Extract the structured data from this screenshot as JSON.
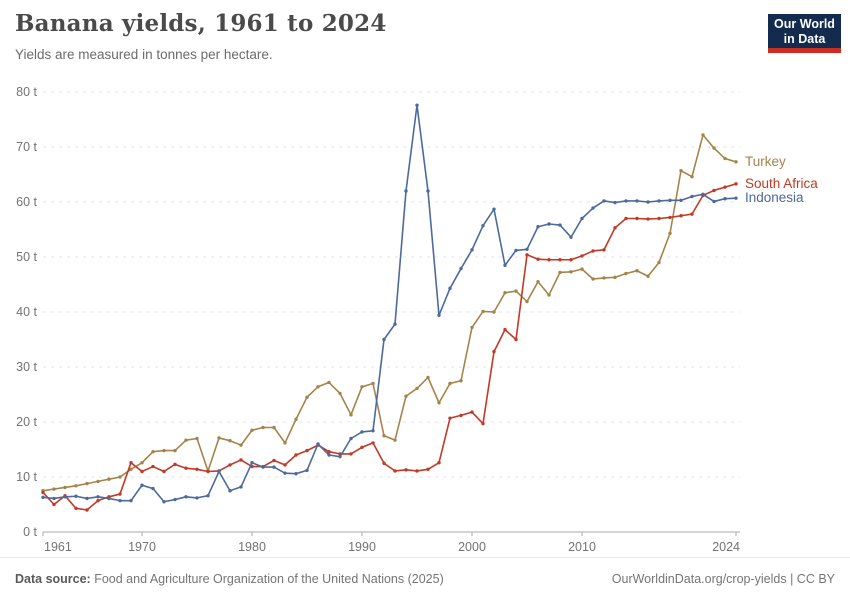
{
  "header": {
    "title": "Banana yields, 1961 to 2024",
    "subtitle": "Yields are measured in tonnes per hectare.",
    "logo": {
      "line1": "Our World",
      "line2": "in Data",
      "bg_color": "#122B4E",
      "stripe_color": "#CB2D21"
    }
  },
  "footer": {
    "source_label": "Data source:",
    "source_text": "Food and Agriculture Organization of the United Nations (2025)",
    "link_text": "OurWorldinData.org/crop-yields | CC BY"
  },
  "chart_data": {
    "type": "line",
    "title": "Banana yields, 1961 to 2024",
    "subtitle": "Yields are measured in tonnes per hectare.",
    "unit": "t",
    "ylim": [
      0,
      80
    ],
    "yticks": [
      0,
      10,
      20,
      30,
      40,
      50,
      60,
      70,
      80
    ],
    "xticks": [
      1961,
      1970,
      1980,
      1990,
      2000,
      2010,
      2024
    ],
    "grid": true,
    "legend_position": "right-end-labels",
    "x": [
      1961,
      1962,
      1963,
      1964,
      1965,
      1966,
      1967,
      1968,
      1969,
      1970,
      1971,
      1972,
      1973,
      1974,
      1975,
      1976,
      1977,
      1978,
      1979,
      1980,
      1981,
      1982,
      1983,
      1984,
      1985,
      1986,
      1987,
      1988,
      1989,
      1990,
      1991,
      1992,
      1993,
      1994,
      1995,
      1996,
      1997,
      1998,
      1999,
      2000,
      2001,
      2002,
      2003,
      2004,
      2005,
      2006,
      2007,
      2008,
      2009,
      2010,
      2011,
      2012,
      2013,
      2014,
      2015,
      2016,
      2017,
      2018,
      2019,
      2020,
      2021,
      2022,
      2023,
      2024
    ],
    "series": [
      {
        "name": "Turkey",
        "color": "#A5844B",
        "values": [
          7.5,
          7.8,
          8.1,
          8.4,
          8.8,
          9.2,
          9.6,
          10.0,
          11.4,
          12.6,
          14.6,
          14.8,
          14.8,
          16.7,
          17.0,
          11.1,
          17.1,
          16.6,
          15.8,
          18.5,
          19.0,
          19.0,
          16.2,
          20.5,
          24.5,
          26.4,
          27.2,
          25.2,
          21.3,
          26.4,
          27.0,
          17.5,
          16.7,
          24.7,
          26.1,
          28.1,
          23.5,
          27.0,
          27.5,
          37.2,
          40.1,
          40.0,
          43.5,
          43.8,
          41.9,
          45.5,
          43.1,
          47.2,
          47.3,
          47.8,
          46.0,
          46.2,
          46.3,
          47.0,
          47.5,
          46.5,
          49.0,
          54.3,
          65.7,
          64.6,
          72.2,
          69.8,
          67.9,
          67.3
        ]
      },
      {
        "name": "South Africa",
        "color": "#C03A26",
        "values": [
          7.2,
          5.0,
          6.6,
          4.3,
          4.0,
          5.7,
          6.4,
          6.9,
          12.6,
          11.0,
          11.9,
          11.0,
          12.3,
          11.6,
          11.4,
          11.0,
          11.1,
          12.2,
          13.1,
          11.9,
          11.9,
          13.0,
          12.2,
          14.0,
          14.8,
          15.8,
          14.6,
          14.2,
          14.2,
          15.4,
          16.2,
          12.5,
          11.1,
          11.3,
          11.1,
          11.4,
          12.6,
          20.7,
          21.2,
          21.8,
          19.7,
          32.8,
          36.8,
          35.0,
          50.4,
          49.6,
          49.5,
          49.5,
          49.5,
          50.2,
          51.1,
          51.3,
          55.3,
          57.0,
          57.0,
          56.9,
          57.0,
          57.2,
          57.5,
          57.8,
          61.2,
          62.1,
          62.7,
          63.3
        ]
      },
      {
        "name": "Indonesia",
        "color": "#4C6A9C",
        "values": [
          6.3,
          6.1,
          6.4,
          6.5,
          6.1,
          6.4,
          6.1,
          5.7,
          5.7,
          8.5,
          7.9,
          5.5,
          5.9,
          6.4,
          6.2,
          6.6,
          11.0,
          7.5,
          8.2,
          12.6,
          11.8,
          11.8,
          10.7,
          10.6,
          11.2,
          16.0,
          14.0,
          13.7,
          17.0,
          18.2,
          18.4,
          35.0,
          37.8,
          62.0,
          77.6,
          62.0,
          39.4,
          44.3,
          47.9,
          51.3,
          55.7,
          58.7,
          48.5,
          51.2,
          51.4,
          55.5,
          56.0,
          55.8,
          53.6,
          57.0,
          58.9,
          60.2,
          59.9,
          60.2,
          60.2,
          60.0,
          60.2,
          60.3,
          60.3,
          61.0,
          61.4,
          60.1,
          60.6,
          60.7
        ]
      }
    ]
  }
}
